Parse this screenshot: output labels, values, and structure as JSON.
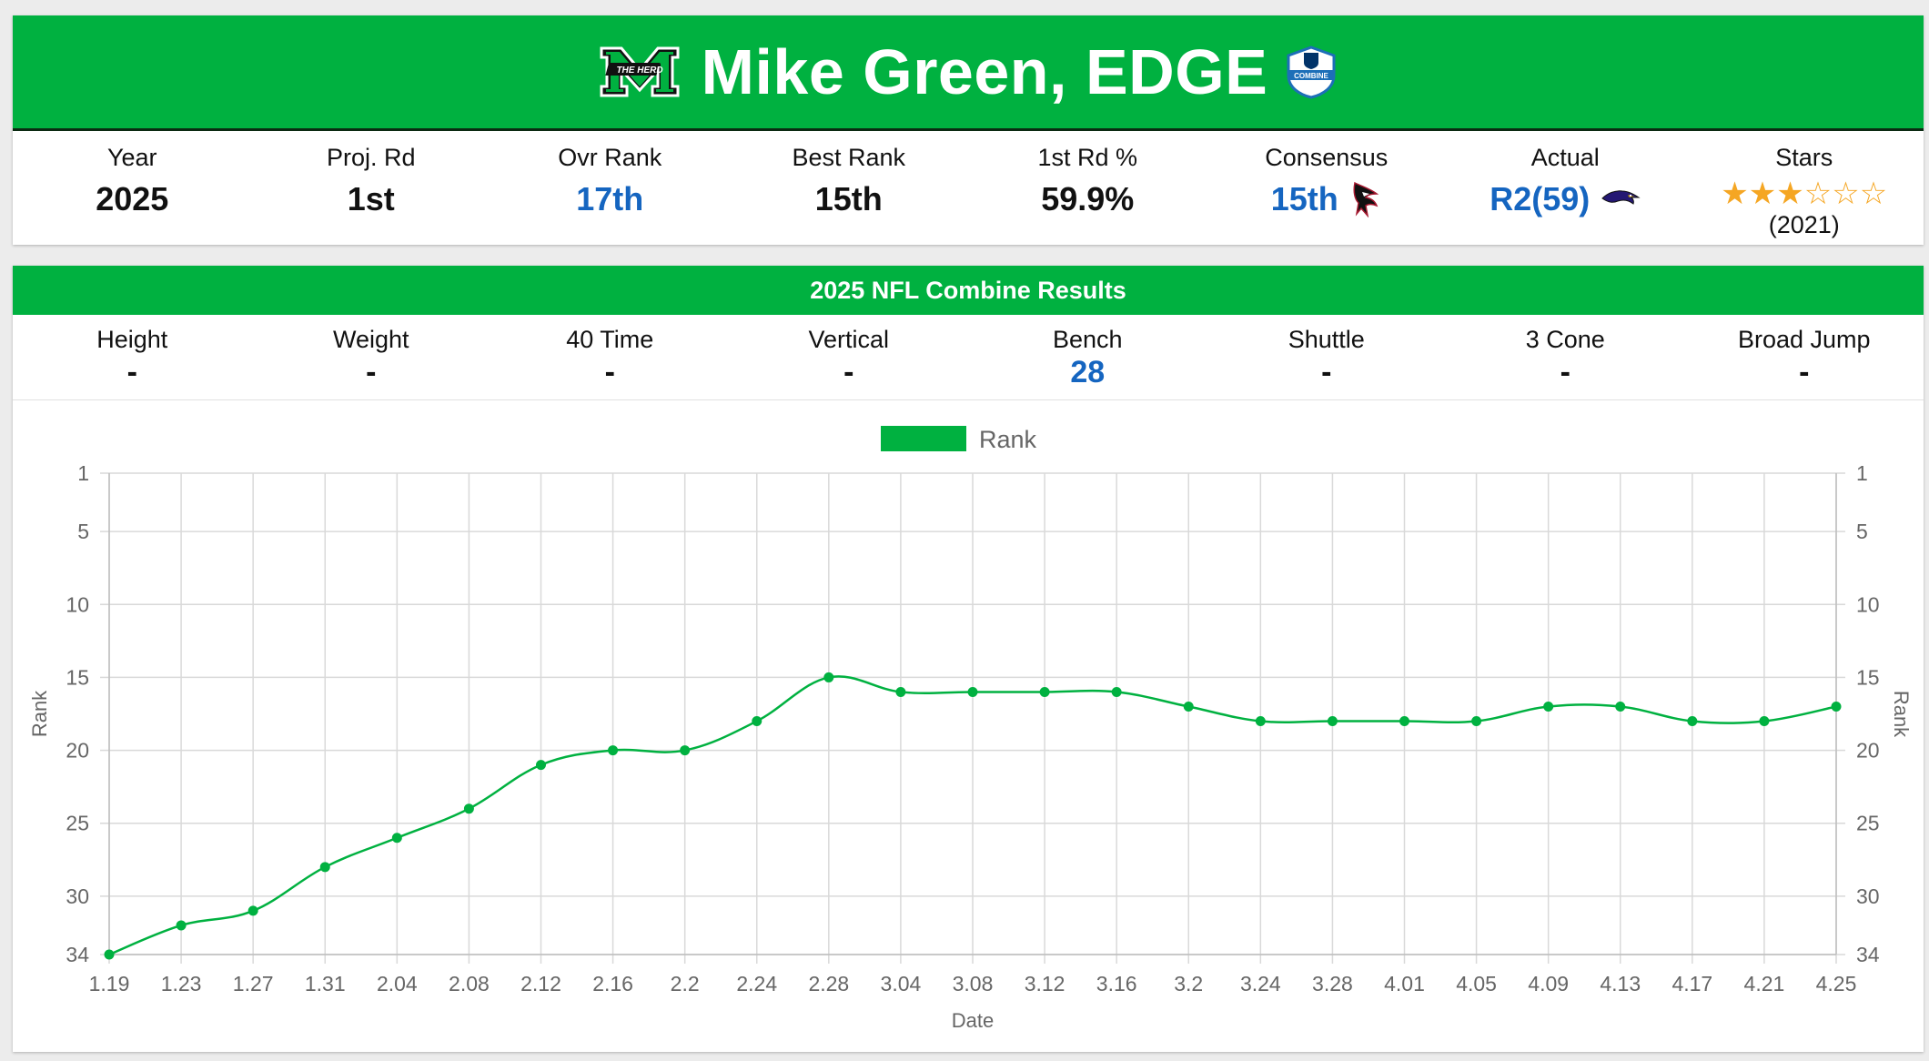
{
  "header": {
    "title": "Mike Green, EDGE",
    "school_logo_text": "THE HERD",
    "combine_logo_text": "COMBINE",
    "accent_color": "#00b140",
    "stats": [
      {
        "label": "Year",
        "value": "2025",
        "style": "plain"
      },
      {
        "label": "Proj. Rd",
        "value": "1st",
        "style": "plain"
      },
      {
        "label": "Ovr Rank",
        "value": "17th",
        "style": "blue"
      },
      {
        "label": "Best Rank",
        "value": "15th",
        "style": "plain"
      },
      {
        "label": "1st Rd %",
        "value": "59.9%",
        "style": "plain"
      },
      {
        "label": "Consensus",
        "value": "15th",
        "style": "blue",
        "team_icon": "falcons-icon"
      },
      {
        "label": "Actual",
        "value": "R2(59)",
        "style": "blue",
        "team_icon": "ravens-icon"
      }
    ],
    "stars": {
      "label": "Stars",
      "filled": 3,
      "total": 6,
      "year": "(2021)"
    }
  },
  "combine": {
    "title": "2025 NFL Combine Results",
    "items": [
      {
        "label": "Height",
        "value": "-"
      },
      {
        "label": "Weight",
        "value": "-"
      },
      {
        "label": "40 Time",
        "value": "-"
      },
      {
        "label": "Vertical",
        "value": "-"
      },
      {
        "label": "Bench",
        "value": "28",
        "style": "blue"
      },
      {
        "label": "Shuttle",
        "value": "-"
      },
      {
        "label": "3 Cone",
        "value": "-"
      },
      {
        "label": "Broad Jump",
        "value": "-"
      }
    ]
  },
  "chart_data": {
    "type": "line",
    "x": [
      "1.19",
      "1.23",
      "1.27",
      "1.31",
      "2.04",
      "2.08",
      "2.12",
      "2.16",
      "2.2",
      "2.24",
      "2.28",
      "3.04",
      "3.08",
      "3.12",
      "3.16",
      "3.2",
      "3.24",
      "3.28",
      "4.01",
      "4.05",
      "4.09",
      "4.13",
      "4.17",
      "4.21",
      "4.25"
    ],
    "series": [
      {
        "name": "Rank",
        "color": "#00b140",
        "values": [
          34,
          32,
          31,
          28,
          26,
          24,
          21,
          20,
          20,
          18,
          15,
          16,
          16,
          16,
          16,
          17,
          18,
          18,
          18,
          18,
          17,
          17,
          18,
          18,
          17
        ]
      }
    ],
    "xlabel": "Date",
    "ylabel": "Rank",
    "y_ticks": [
      1,
      5,
      10,
      15,
      20,
      25,
      30,
      34
    ],
    "ylim": [
      1,
      34
    ],
    "y_reversed": true,
    "grid": true,
    "legend": "top-center"
  }
}
